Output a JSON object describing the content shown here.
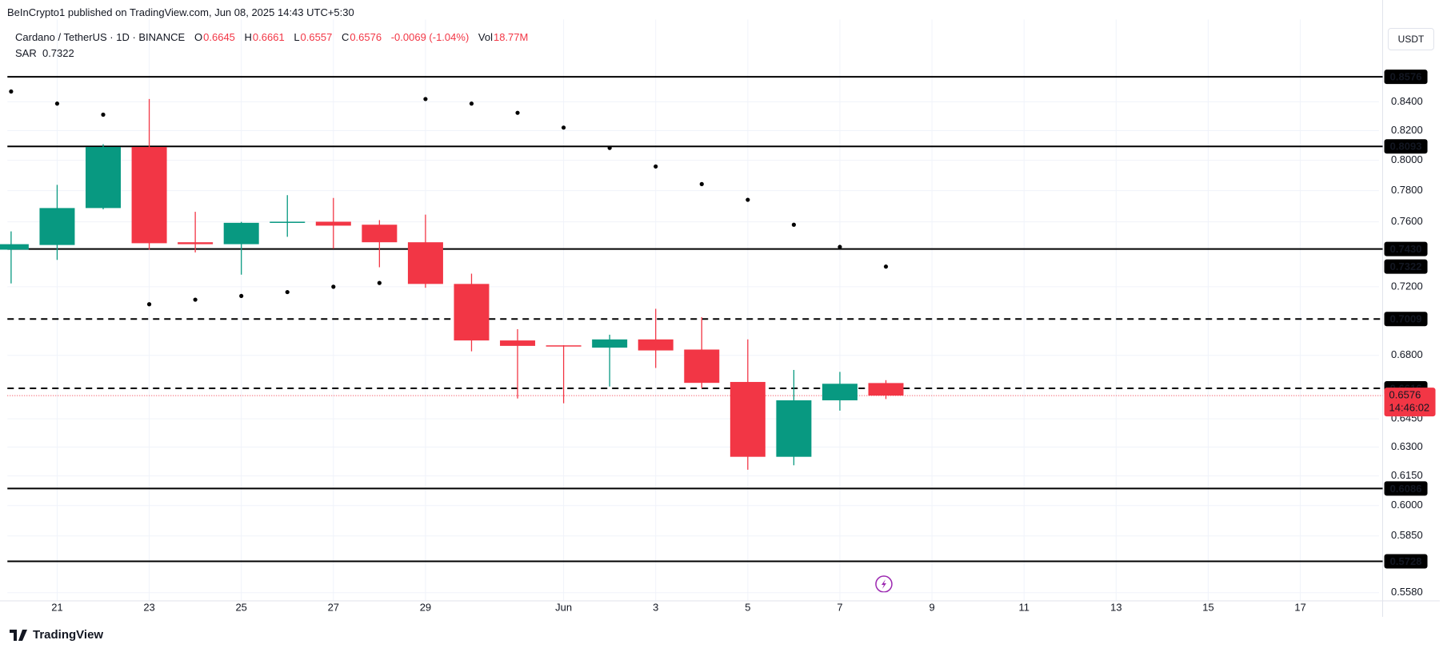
{
  "header": {
    "publisher": "BeInCrypto1 published on TradingView.com, Jun 08, 2025 14:43 UTC+5:30"
  },
  "currency_button": "USDT",
  "footer": {
    "brand": "TradingView"
  },
  "chart_data": {
    "type": "candlestick",
    "symbol": "Cardano / TetherUS · 1D · BINANCE",
    "ohlc_letters": [
      "O",
      "H",
      "L",
      "C"
    ],
    "change": "-0.0069 (-1.04%)",
    "volume_label": "Vol",
    "volume": "18.77M",
    "countdown": "14:46:02",
    "categories": [
      null,
      "21",
      null,
      "23",
      null,
      "25",
      null,
      "27",
      null,
      "29",
      null,
      null,
      "Jun",
      null,
      "3",
      null,
      "5",
      null,
      "7",
      null,
      "9",
      null,
      "11",
      null,
      "13",
      null,
      "15",
      null,
      "17",
      null
    ],
    "open": [
      0.7426,
      0.7455,
      0.7688,
      0.8089,
      0.7472,
      0.746,
      0.7594,
      0.7601,
      0.7582,
      0.7472,
      0.7217,
      0.6885,
      0.6857,
      0.6844,
      0.6891,
      0.6833,
      0.6651,
      0.6249,
      0.655,
      0.6645,
      null,
      null,
      null,
      null,
      null,
      null,
      null,
      null,
      null,
      null
    ],
    "high": [
      0.754,
      0.7838,
      0.8108,
      0.8419,
      0.7664,
      0.76,
      0.7771,
      0.7753,
      0.7611,
      0.7646,
      0.7279,
      0.695,
      0.6858,
      0.6918,
      0.7069,
      0.702,
      0.6891,
      0.6718,
      0.6707,
      0.6661,
      null,
      null,
      null,
      null,
      null,
      null,
      null,
      null,
      null,
      null
    ],
    "low": [
      0.722,
      0.7363,
      0.768,
      0.7426,
      0.7409,
      0.7273,
      0.7506,
      0.7432,
      0.7318,
      0.7194,
      0.6823,
      0.656,
      0.6534,
      0.6626,
      0.6729,
      0.6616,
      0.6182,
      0.6205,
      0.6494,
      0.6557,
      null,
      null,
      null,
      null,
      null,
      null,
      null,
      null,
      null,
      null
    ],
    "close": [
      0.746,
      0.7688,
      0.8089,
      0.7466,
      0.746,
      0.7594,
      0.7601,
      0.7576,
      0.7472,
      0.7217,
      0.6885,
      0.6854,
      0.6852,
      0.6891,
      0.6828,
      0.6646,
      0.6249,
      0.655,
      0.6641,
      0.6576,
      null,
      null,
      null,
      null,
      null,
      null,
      null,
      null,
      null,
      null
    ],
    "indicator": {
      "name": "SAR",
      "color": "#000000",
      "values": [
        0.8472,
        0.8387,
        0.831,
        0.7096,
        0.7123,
        0.7145,
        0.7168,
        0.72,
        0.7223,
        0.8419,
        0.8387,
        0.8323,
        0.8221,
        0.8083,
        0.7959,
        0.7843,
        0.7741,
        0.7582,
        0.7443,
        0.7322,
        null,
        null,
        null,
        null,
        null,
        null,
        null,
        null,
        null,
        null
      ]
    },
    "colors": {
      "up": "#089981",
      "down": "#f23645"
    },
    "log": true,
    "grid": true,
    "ylim": [
      0.5542,
      0.8948
    ],
    "yticks": [
      {
        "value": 0.84,
        "label": "0.8400"
      },
      {
        "value": 0.82,
        "label": "0.8200"
      },
      {
        "value": 0.8,
        "label": "0.8000"
      },
      {
        "value": 0.78,
        "label": "0.7800"
      },
      {
        "value": 0.76,
        "label": "0.7600"
      },
      {
        "value": 0.72,
        "label": "0.7200"
      },
      {
        "value": 0.68,
        "label": "0.6800"
      },
      {
        "value": 0.645,
        "label": "0.6450"
      },
      {
        "value": 0.63,
        "label": "0.6300"
      },
      {
        "value": 0.615,
        "label": "0.6150"
      },
      {
        "value": 0.6,
        "label": "0.6000"
      },
      {
        "value": 0.585,
        "label": "0.5850"
      },
      {
        "value": 0.558,
        "label": "0.5580"
      }
    ],
    "levels": [
      {
        "value": 0.8576,
        "label": "0.8576",
        "dashed": false
      },
      {
        "value": 0.8093,
        "label": "0.8093",
        "dashed": false
      },
      {
        "value": 0.743,
        "label": "0.7430",
        "dashed": false
      },
      {
        "value": 0.7009,
        "label": "0.7009",
        "dashed": true
      },
      {
        "value": 0.6616,
        "label": "0.6616",
        "dashed": true
      },
      {
        "value": 0.6086,
        "label": "0.6086",
        "dashed": false
      },
      {
        "value": 0.5728,
        "label": "0.5728",
        "dashed": false
      }
    ]
  }
}
